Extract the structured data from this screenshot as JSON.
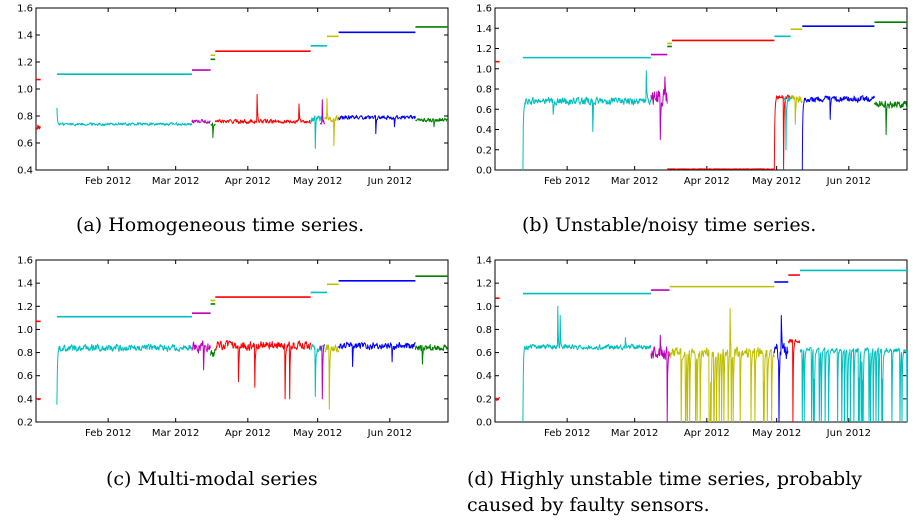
{
  "figure": {
    "panels": [
      {
        "id": "a",
        "caption": "(a) Homogeneous time series."
      },
      {
        "id": "b",
        "caption": "(b) Unstable/noisy time series."
      },
      {
        "id": "c",
        "caption": "(c) Multi-modal series"
      },
      {
        "id": "d",
        "caption": "(d) Highly unstable time series, probably\ncaused by faulty sensors."
      }
    ]
  },
  "colors": {
    "red": "#ff0000",
    "cyan": "#00bfbf",
    "magenta": "#bf00bf",
    "green": "#008000",
    "olive": "#bfbf00",
    "blue": "#0000ff"
  },
  "chart_data": [
    {
      "type": "line",
      "ylim": [
        0.4,
        1.6
      ],
      "yticks": [
        "0.4",
        "0.6",
        "0.8",
        "1.0",
        "1.2",
        "1.4",
        "1.6"
      ],
      "xlim": [
        "2012-01-01",
        "2012-06-26"
      ],
      "xticks": [
        {
          "date": "2012-02-01",
          "label": "Feb 2012"
        },
        {
          "date": "2012-03-01",
          "label": "Mar 2012"
        },
        {
          "date": "2012-04-01",
          "label": "Apr 2012"
        },
        {
          "date": "2012-05-01",
          "label": "May 2012"
        },
        {
          "date": "2012-06-01",
          "label": "Jun 2012"
        }
      ],
      "steps": [
        {
          "color": "red",
          "start": "2012-01-01",
          "end": "2012-01-03",
          "value": 1.07
        },
        {
          "color": "cyan",
          "start": "2012-01-10",
          "end": "2012-03-08",
          "value": 1.11
        },
        {
          "color": "magenta",
          "start": "2012-03-08",
          "end": "2012-03-16",
          "value": 1.14
        },
        {
          "color": "green",
          "start": "2012-03-16",
          "end": "2012-03-18",
          "value": 1.22
        },
        {
          "color": "olive",
          "start": "2012-03-16",
          "end": "2012-03-18",
          "value": 1.25
        },
        {
          "color": "red",
          "start": "2012-03-18",
          "end": "2012-04-28",
          "value": 1.28
        },
        {
          "color": "cyan",
          "start": "2012-04-28",
          "end": "2012-05-05",
          "value": 1.32
        },
        {
          "color": "olive",
          "start": "2012-05-05",
          "end": "2012-05-10",
          "value": 1.39
        },
        {
          "color": "blue",
          "start": "2012-05-10",
          "end": "2012-06-12",
          "value": 1.42
        },
        {
          "color": "green",
          "start": "2012-06-12",
          "end": "2012-06-26",
          "value": 1.46
        }
      ],
      "segments": [
        {
          "color": "red",
          "start": "2012-01-01",
          "end": "2012-01-03",
          "base": 0.72,
          "noise": 0.03,
          "spikes": []
        },
        {
          "color": "cyan",
          "start": "2012-01-10",
          "end": "2012-03-08",
          "base": 0.74,
          "noise": 0.015,
          "spikes": [
            {
              "date": "2012-01-10",
              "value": 0.86
            }
          ]
        },
        {
          "color": "magenta",
          "start": "2012-03-08",
          "end": "2012-03-16",
          "base": 0.76,
          "noise": 0.02,
          "spikes": []
        },
        {
          "color": "green",
          "start": "2012-03-16",
          "end": "2012-03-18",
          "base": 0.74,
          "noise": 0.02,
          "spikes": [
            {
              "date": "2012-03-17",
              "value": 0.64
            }
          ]
        },
        {
          "color": "red",
          "start": "2012-03-18",
          "end": "2012-04-28",
          "base": 0.76,
          "noise": 0.02,
          "spikes": [
            {
              "date": "2012-04-05",
              "value": 0.96
            },
            {
              "date": "2012-04-23",
              "value": 0.89
            }
          ]
        },
        {
          "color": "cyan",
          "start": "2012-04-28",
          "end": "2012-05-03",
          "base": 0.78,
          "noise": 0.03,
          "spikes": [
            {
              "date": "2012-04-30",
              "value": 0.56
            }
          ]
        },
        {
          "color": "magenta",
          "start": "2012-05-02",
          "end": "2012-05-04",
          "base": 0.75,
          "noise": 0.03,
          "spikes": [
            {
              "date": "2012-05-03",
              "value": 0.92
            }
          ]
        },
        {
          "color": "olive",
          "start": "2012-05-04",
          "end": "2012-05-10",
          "base": 0.78,
          "noise": 0.03,
          "spikes": [
            {
              "date": "2012-05-05",
              "value": 0.93
            },
            {
              "date": "2012-05-08",
              "value": 0.58
            }
          ]
        },
        {
          "color": "blue",
          "start": "2012-05-10",
          "end": "2012-06-12",
          "base": 0.79,
          "noise": 0.02,
          "spikes": [
            {
              "date": "2012-05-26",
              "value": 0.67
            },
            {
              "date": "2012-06-03",
              "value": 0.72
            }
          ]
        },
        {
          "color": "green",
          "start": "2012-06-12",
          "end": "2012-06-26",
          "base": 0.77,
          "noise": 0.02,
          "spikes": [
            {
              "date": "2012-06-20",
              "value": 0.72
            }
          ]
        }
      ]
    },
    {
      "type": "line",
      "ylim": [
        0.0,
        1.6
      ],
      "yticks": [
        "0.0",
        "0.2",
        "0.4",
        "0.6",
        "0.8",
        "1.0",
        "1.2",
        "1.4",
        "1.6"
      ],
      "xlim": [
        "2012-01-01",
        "2012-06-26"
      ],
      "xticks": [
        {
          "date": "2012-02-01",
          "label": "Feb 2012"
        },
        {
          "date": "2012-03-01",
          "label": "Mar 2012"
        },
        {
          "date": "2012-04-01",
          "label": "Apr 2012"
        },
        {
          "date": "2012-05-01",
          "label": "May 2012"
        },
        {
          "date": "2012-06-01",
          "label": "Jun 2012"
        }
      ],
      "steps": [
        {
          "color": "red",
          "start": "2012-01-01",
          "end": "2012-01-03",
          "value": 1.07
        },
        {
          "color": "cyan",
          "start": "2012-01-13",
          "end": "2012-03-08",
          "value": 1.11
        },
        {
          "color": "magenta",
          "start": "2012-03-08",
          "end": "2012-03-15",
          "value": 1.14
        },
        {
          "color": "green",
          "start": "2012-03-15",
          "end": "2012-03-17",
          "value": 1.22
        },
        {
          "color": "olive",
          "start": "2012-03-15",
          "end": "2012-03-17",
          "value": 1.25
        },
        {
          "color": "red",
          "start": "2012-03-17",
          "end": "2012-04-30",
          "value": 1.28
        },
        {
          "color": "cyan",
          "start": "2012-04-30",
          "end": "2012-05-07",
          "value": 1.32
        },
        {
          "color": "olive",
          "start": "2012-05-07",
          "end": "2012-05-12",
          "value": 1.39
        },
        {
          "color": "blue",
          "start": "2012-05-12",
          "end": "2012-06-12",
          "value": 1.42
        },
        {
          "color": "green",
          "start": "2012-06-12",
          "end": "2012-06-26",
          "value": 1.46
        }
      ],
      "segments": [
        {
          "color": "cyan",
          "start": "2012-01-13",
          "end": "2012-03-08",
          "base": 0.68,
          "noise": 0.05,
          "spikes": [
            {
              "date": "2012-01-13",
              "value": 0.0
            },
            {
              "date": "2012-01-26",
              "value": 0.55
            },
            {
              "date": "2012-02-12",
              "value": 0.38
            },
            {
              "date": "2012-03-06",
              "value": 0.98
            }
          ]
        },
        {
          "color": "magenta",
          "start": "2012-03-08",
          "end": "2012-03-15",
          "base": 0.72,
          "noise": 0.12,
          "spikes": [
            {
              "date": "2012-03-12",
              "value": 0.3
            },
            {
              "date": "2012-03-14",
              "value": 0.92
            }
          ]
        },
        {
          "color": "red",
          "start": "2012-03-15",
          "end": "2012-04-30",
          "base": 0.01,
          "noise": 0.003,
          "spikes": []
        },
        {
          "color": "red",
          "start": "2012-04-30",
          "end": "2012-05-08",
          "base": 0.72,
          "noise": 0.03,
          "spikes": [
            {
              "date": "2012-04-30",
              "value": 0.0
            },
            {
              "date": "2012-05-04",
              "value": 0.0
            }
          ]
        },
        {
          "color": "cyan",
          "start": "2012-05-04",
          "end": "2012-05-07",
          "base": 0.7,
          "noise": 0.05,
          "spikes": [
            {
              "date": "2012-05-05",
              "value": 0.2
            }
          ]
        },
        {
          "color": "olive",
          "start": "2012-05-07",
          "end": "2012-05-12",
          "base": 0.7,
          "noise": 0.05,
          "spikes": [
            {
              "date": "2012-05-09",
              "value": 0.45
            }
          ]
        },
        {
          "color": "blue",
          "start": "2012-05-12",
          "end": "2012-06-12",
          "base": 0.7,
          "noise": 0.04,
          "spikes": [
            {
              "date": "2012-05-12",
              "value": 0.0
            },
            {
              "date": "2012-05-24",
              "value": 0.5
            }
          ]
        },
        {
          "color": "green",
          "start": "2012-06-12",
          "end": "2012-06-26",
          "base": 0.65,
          "noise": 0.05,
          "spikes": [
            {
              "date": "2012-06-17",
              "value": 0.35
            }
          ]
        }
      ]
    },
    {
      "type": "line",
      "ylim": [
        0.2,
        1.6
      ],
      "yticks": [
        "0.2",
        "0.4",
        "0.6",
        "0.8",
        "1.0",
        "1.2",
        "1.4",
        "1.6"
      ],
      "xlim": [
        "2012-01-01",
        "2012-06-26"
      ],
      "xticks": [
        {
          "date": "2012-02-01",
          "label": "Feb 2012"
        },
        {
          "date": "2012-03-01",
          "label": "Mar 2012"
        },
        {
          "date": "2012-04-01",
          "label": "Apr 2012"
        },
        {
          "date": "2012-05-01",
          "label": "May 2012"
        },
        {
          "date": "2012-06-01",
          "label": "Jun 2012"
        }
      ],
      "steps": [
        {
          "color": "red",
          "start": "2012-01-01",
          "end": "2012-01-03",
          "value": 1.07
        },
        {
          "color": "cyan",
          "start": "2012-01-10",
          "end": "2012-03-08",
          "value": 1.11
        },
        {
          "color": "magenta",
          "start": "2012-03-08",
          "end": "2012-03-16",
          "value": 1.14
        },
        {
          "color": "green",
          "start": "2012-03-16",
          "end": "2012-03-18",
          "value": 1.22
        },
        {
          "color": "olive",
          "start": "2012-03-16",
          "end": "2012-03-18",
          "value": 1.25
        },
        {
          "color": "red",
          "start": "2012-03-18",
          "end": "2012-04-28",
          "value": 1.28
        },
        {
          "color": "cyan",
          "start": "2012-04-28",
          "end": "2012-05-05",
          "value": 1.32
        },
        {
          "color": "olive",
          "start": "2012-05-05",
          "end": "2012-05-10",
          "value": 1.39
        },
        {
          "color": "blue",
          "start": "2012-05-10",
          "end": "2012-06-12",
          "value": 1.42
        },
        {
          "color": "green",
          "start": "2012-06-12",
          "end": "2012-06-26",
          "value": 1.46
        }
      ],
      "segments": [
        {
          "color": "red",
          "start": "2012-01-01",
          "end": "2012-01-03",
          "base": 0.4,
          "noise": 0.01,
          "spikes": []
        },
        {
          "color": "cyan",
          "start": "2012-01-10",
          "end": "2012-03-08",
          "base": 0.84,
          "noise": 0.04,
          "spikes": [
            {
              "date": "2012-01-10",
              "value": 0.35
            }
          ]
        },
        {
          "color": "magenta",
          "start": "2012-03-08",
          "end": "2012-03-16",
          "base": 0.85,
          "noise": 0.06,
          "spikes": [
            {
              "date": "2012-03-13",
              "value": 0.65
            }
          ]
        },
        {
          "color": "green",
          "start": "2012-03-16",
          "end": "2012-03-18",
          "base": 0.8,
          "noise": 0.05,
          "spikes": []
        },
        {
          "color": "red",
          "start": "2012-03-18",
          "end": "2012-04-28",
          "base": 0.86,
          "noise": 0.05,
          "spikes": [
            {
              "date": "2012-03-28",
              "value": 0.55
            },
            {
              "date": "2012-04-04",
              "value": 0.5
            },
            {
              "date": "2012-04-17",
              "value": 0.4
            },
            {
              "date": "2012-04-19",
              "value": 0.4
            }
          ]
        },
        {
          "color": "cyan",
          "start": "2012-04-28",
          "end": "2012-05-04",
          "base": 0.84,
          "noise": 0.04,
          "spikes": [
            {
              "date": "2012-04-30",
              "value": 0.42
            }
          ]
        },
        {
          "color": "magenta",
          "start": "2012-05-02",
          "end": "2012-05-04",
          "base": 0.84,
          "noise": 0.04,
          "spikes": [
            {
              "date": "2012-05-03",
              "value": 0.4
            }
          ]
        },
        {
          "color": "olive",
          "start": "2012-05-04",
          "end": "2012-05-10",
          "base": 0.84,
          "noise": 0.05,
          "spikes": [
            {
              "date": "2012-05-06",
              "value": 0.31
            }
          ]
        },
        {
          "color": "blue",
          "start": "2012-05-10",
          "end": "2012-06-12",
          "base": 0.86,
          "noise": 0.04,
          "spikes": [
            {
              "date": "2012-05-16",
              "value": 0.68
            },
            {
              "date": "2012-06-02",
              "value": 0.72
            }
          ]
        },
        {
          "color": "green",
          "start": "2012-06-12",
          "end": "2012-06-26",
          "base": 0.84,
          "noise": 0.04,
          "spikes": [
            {
              "date": "2012-06-15",
              "value": 0.7
            }
          ]
        }
      ]
    },
    {
      "type": "line",
      "ylim": [
        0.0,
        1.4
      ],
      "yticks": [
        "0.0",
        "0.2",
        "0.4",
        "0.6",
        "0.8",
        "1.0",
        "1.2",
        "1.4"
      ],
      "xlim": [
        "2012-01-01",
        "2012-06-26"
      ],
      "xticks": [
        {
          "date": "2012-02-01",
          "label": "Feb 2012"
        },
        {
          "date": "2012-03-01",
          "label": "Mar 2012"
        },
        {
          "date": "2012-04-01",
          "label": "Apr 2012"
        },
        {
          "date": "2012-05-01",
          "label": "May 2012"
        },
        {
          "date": "2012-06-01",
          "label": "Jun 2012"
        }
      ],
      "steps": [
        {
          "color": "red",
          "start": "2012-01-01",
          "end": "2012-01-03",
          "value": 1.07
        },
        {
          "color": "cyan",
          "start": "2012-01-13",
          "end": "2012-03-08",
          "value": 1.11
        },
        {
          "color": "magenta",
          "start": "2012-03-08",
          "end": "2012-03-16",
          "value": 1.14
        },
        {
          "color": "olive",
          "start": "2012-03-16",
          "end": "2012-04-30",
          "value": 1.17
        },
        {
          "color": "blue",
          "start": "2012-04-30",
          "end": "2012-05-06",
          "value": 1.21
        },
        {
          "color": "red",
          "start": "2012-05-06",
          "end": "2012-05-11",
          "value": 1.27
        },
        {
          "color": "cyan",
          "start": "2012-05-11",
          "end": "2012-06-26",
          "value": 1.31
        }
      ],
      "segments": [
        {
          "color": "red",
          "start": "2012-01-01",
          "end": "2012-01-03",
          "base": 0.2,
          "noise": 0.02,
          "spikes": []
        },
        {
          "color": "cyan",
          "start": "2012-01-13",
          "end": "2012-03-08",
          "base": 0.65,
          "noise": 0.03,
          "spikes": [
            {
              "date": "2012-01-13",
              "value": 0.0
            },
            {
              "date": "2012-01-28",
              "value": 1.0
            },
            {
              "date": "2012-01-29",
              "value": 0.92
            },
            {
              "date": "2012-02-26",
              "value": 0.73
            }
          ]
        },
        {
          "color": "magenta",
          "start": "2012-03-08",
          "end": "2012-03-16",
          "base": 0.6,
          "noise": 0.08,
          "spikes": [
            {
              "date": "2012-03-12",
              "value": 0.75
            },
            {
              "date": "2012-03-15",
              "value": 0.0
            }
          ]
        },
        {
          "color": "olive",
          "start": "2012-03-16",
          "end": "2012-04-30",
          "base": 0.6,
          "noise": 0.06,
          "dips": true,
          "spikes": [
            {
              "date": "2012-04-11",
              "value": 0.98
            }
          ]
        },
        {
          "color": "blue",
          "start": "2012-04-30",
          "end": "2012-05-06",
          "base": 0.6,
          "noise": 0.1,
          "spikes": [
            {
              "date": "2012-05-03",
              "value": 0.92
            },
            {
              "date": "2012-05-02",
              "value": 0.0
            }
          ]
        },
        {
          "color": "red",
          "start": "2012-05-06",
          "end": "2012-05-11",
          "base": 0.7,
          "noise": 0.03,
          "spikes": [
            {
              "date": "2012-05-08",
              "value": 0.0
            }
          ]
        },
        {
          "color": "cyan",
          "start": "2012-05-11",
          "end": "2012-06-26",
          "base": 0.62,
          "noise": 0.03,
          "dips": true,
          "spikes": []
        }
      ]
    }
  ]
}
